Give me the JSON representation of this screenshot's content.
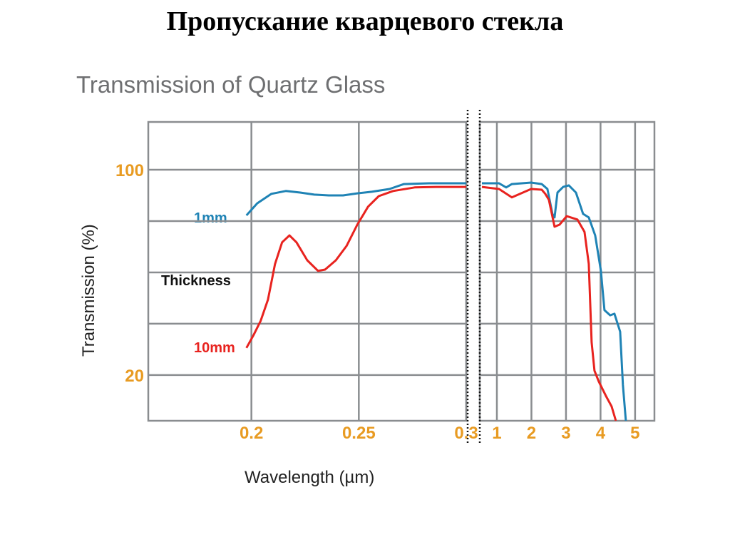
{
  "slide_title": "Пропускание кварцевого стекла",
  "chart_data": {
    "type": "line",
    "title": "Transmission of Quartz Glass",
    "xlabel": "Wavelength (µm)",
    "ylabel": "Transmission (%)",
    "ylim": [
      2.2,
      118.6
    ],
    "y_ticks": [
      {
        "value": 100,
        "label": "100"
      },
      {
        "value": 20,
        "label": "20"
      }
    ],
    "y_grid": [
      100,
      80,
      60,
      40,
      20
    ],
    "legend_title": "Thickness",
    "colors": {
      "1mm": "#1f83b5",
      "10mm": "#e8231f",
      "ticks": "#e89b22"
    },
    "panels": [
      {
        "name": "uv",
        "xlim": [
          0.152,
          0.3
        ],
        "x_grid": [
          0.2,
          0.25,
          0.3
        ],
        "x_ticks": [
          {
            "value": 0.2,
            "label": "0.2"
          },
          {
            "value": 0.25,
            "label": "0.25"
          },
          {
            "value": 0.3,
            "label": "0.3"
          }
        ]
      },
      {
        "name": "ir",
        "xlim": [
          0.505,
          5.56
        ],
        "x_grid": [
          1,
          2,
          3,
          4,
          5
        ],
        "x_ticks": [
          {
            "value": 1,
            "label": "1"
          },
          {
            "value": 2,
            "label": "2"
          },
          {
            "value": 3,
            "label": "3"
          },
          {
            "value": 4,
            "label": "4"
          },
          {
            "value": 5,
            "label": "5"
          }
        ]
      }
    ],
    "series": [
      {
        "name": "1mm",
        "label": "1mm",
        "panel_data": {
          "uv": [
            [
              0.1977,
              82.2
            ],
            [
              0.2027,
              86.9
            ],
            [
              0.2093,
              90.6
            ],
            [
              0.216,
              91.7
            ],
            [
              0.2227,
              91.1
            ],
            [
              0.2293,
              90.3
            ],
            [
              0.236,
              90
            ],
            [
              0.2427,
              90
            ],
            [
              0.2493,
              90.8
            ],
            [
              0.256,
              91.4
            ],
            [
              0.2643,
              92.5
            ],
            [
              0.271,
              94.4
            ],
            [
              0.2827,
              94.7
            ],
            [
              0.3,
              94.7
            ]
          ],
          "ir": [
            [
              0.567,
              94.7
            ],
            [
              1.062,
              94.7
            ],
            [
              1.268,
              93.1
            ],
            [
              1.433,
              94.4
            ],
            [
              1.99,
              95
            ],
            [
              2.299,
              94.4
            ],
            [
              2.464,
              92.5
            ],
            [
              2.608,
              82.8
            ],
            [
              2.67,
              81.4
            ],
            [
              2.753,
              91.1
            ],
            [
              2.918,
              93.3
            ],
            [
              3.082,
              93.9
            ],
            [
              3.289,
              91.1
            ],
            [
              3.495,
              82.8
            ],
            [
              3.66,
              81.4
            ],
            [
              3.845,
              74.4
            ],
            [
              4.01,
              60.6
            ],
            [
              4.113,
              45.3
            ],
            [
              4.278,
              43.3
            ],
            [
              4.402,
              43.9
            ],
            [
              4.567,
              36.9
            ],
            [
              4.649,
              16.1
            ],
            [
              4.732,
              2.2
            ]
          ]
        }
      },
      {
        "name": "10mm",
        "label": "10mm",
        "panel_data": {
          "uv": [
            [
              0.1977,
              30.6
            ],
            [
              0.201,
              35.6
            ],
            [
              0.2043,
              41.1
            ],
            [
              0.2077,
              49.4
            ],
            [
              0.211,
              63.3
            ],
            [
              0.2143,
              71.7
            ],
            [
              0.2177,
              74.4
            ],
            [
              0.221,
              71.7
            ],
            [
              0.226,
              64.7
            ],
            [
              0.231,
              60.6
            ],
            [
              0.2343,
              61.1
            ],
            [
              0.2393,
              64.7
            ],
            [
              0.2443,
              70.3
            ],
            [
              0.2493,
              78.6
            ],
            [
              0.2543,
              85.6
            ],
            [
              0.2593,
              89.7
            ],
            [
              0.266,
              91.7
            ],
            [
              0.276,
              93.1
            ],
            [
              0.286,
              93.3
            ],
            [
              0.3,
              93.3
            ]
          ],
          "ir": [
            [
              0.567,
              93.3
            ],
            [
              1.062,
              92.5
            ],
            [
              1.433,
              89.2
            ],
            [
              1.99,
              92.5
            ],
            [
              2.299,
              92.2
            ],
            [
              2.402,
              90.6
            ],
            [
              2.505,
              88.3
            ],
            [
              2.67,
              77.8
            ],
            [
              2.814,
              78.6
            ],
            [
              3.021,
              81.9
            ],
            [
              3.33,
              80.6
            ],
            [
              3.536,
              75.8
            ],
            [
              3.66,
              63.3
            ],
            [
              3.742,
              32.8
            ],
            [
              3.825,
              21.7
            ],
            [
              3.948,
              17.5
            ],
            [
              4.155,
              11.9
            ],
            [
              4.32,
              7.8
            ],
            [
              4.443,
              2.2
            ]
          ]
        }
      }
    ]
  }
}
